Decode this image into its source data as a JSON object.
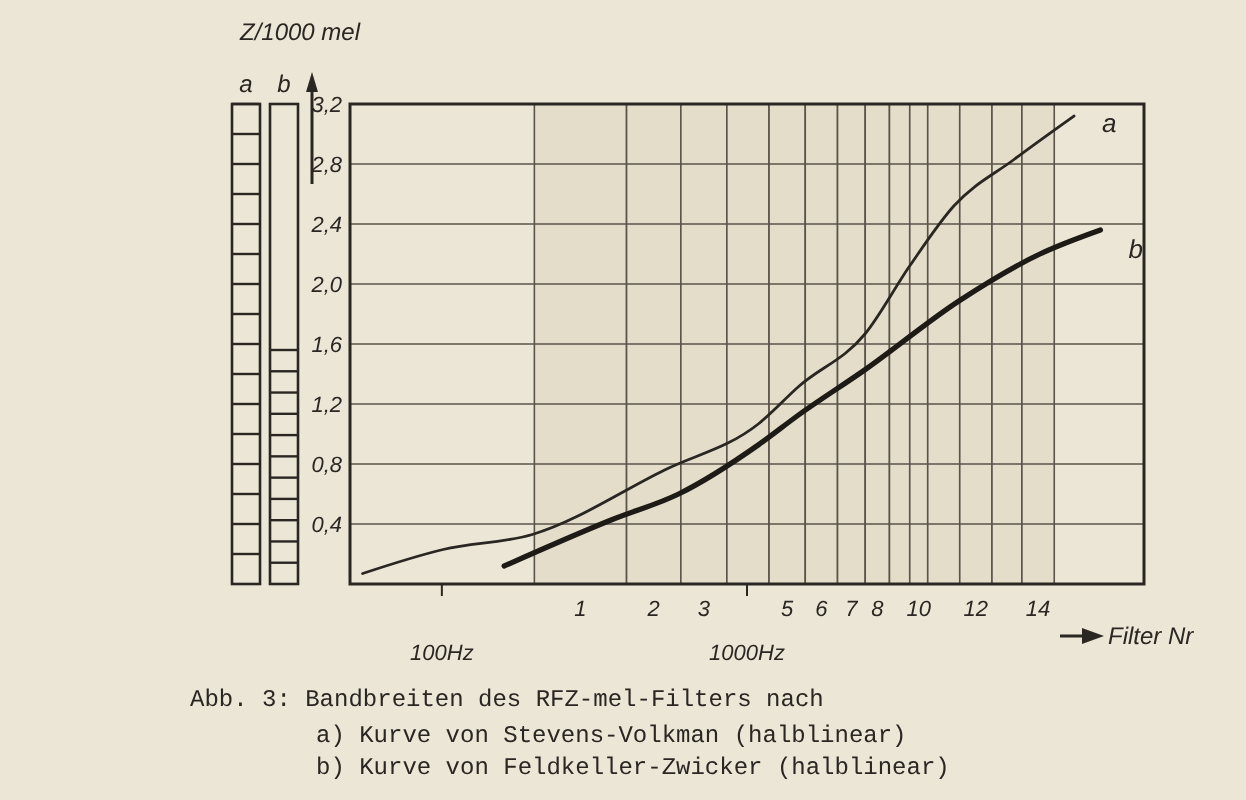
{
  "chart_data": {
    "type": "line",
    "title": "Abb. 3: Bandbreiten des RFZ-mel-Filters nach",
    "annotations": [
      "a) Kurve von Stevens-Volkman (halblinear)",
      "b) Kurve von Feldkeller-Zwicker (halblinear)"
    ],
    "bands": [
      {
        "axis": "x",
        "from": 201,
        "to": 403,
        "label": "1"
      },
      {
        "axis": "x",
        "from": 403,
        "to": 607,
        "label": "2"
      },
      {
        "axis": "x",
        "from": 607,
        "to": 859,
        "label": "3"
      },
      {
        "axis": "x",
        "from": 859,
        "to": 1181
      },
      {
        "axis": "x",
        "from": 1181,
        "to": 1552,
        "label": "5"
      },
      {
        "axis": "x",
        "from": 1552,
        "to": 1980,
        "label": "6"
      },
      {
        "axis": "x",
        "from": 1980,
        "to": 2440,
        "label": "7"
      },
      {
        "axis": "x",
        "from": 2440,
        "to": 2930,
        "label": "8"
      },
      {
        "axis": "x",
        "from": 2930,
        "to": 3415
      },
      {
        "axis": "x",
        "from": 3415,
        "to": 3911,
        "label": "10"
      },
      {
        "axis": "x",
        "from": 3911,
        "to": 4980
      },
      {
        "axis": "x",
        "from": 4980,
        "to": 6350,
        "label": "12"
      },
      {
        "axis": "x",
        "from": 6350,
        "to": 7960
      },
      {
        "axis": "x",
        "from": 7960,
        "to": 10160,
        "label": "14"
      }
    ],
    "xlabel": "Filter Nr",
    "ylabel": "Z/1000 mel",
    "log": "x",
    "xlim": [
      50,
      20000
    ],
    "xticks": [
      {
        "value": 100,
        "label": "100Hz"
      },
      {
        "value": 1000,
        "label": "1000Hz"
      }
    ],
    "ylim": [
      0,
      3.2
    ],
    "yticks": [
      {
        "value": 0.4,
        "label": "0,4"
      },
      {
        "value": 0.8,
        "label": "0,8"
      },
      {
        "value": 1.2,
        "label": "1,2"
      },
      {
        "value": 1.6,
        "label": "1,6"
      },
      {
        "value": 2.0,
        "label": "2,0"
      },
      {
        "value": 2.4,
        "label": "2,4"
      },
      {
        "value": 2.8,
        "label": "2,8"
      },
      {
        "value": 3.2,
        "label": "3,2"
      }
    ],
    "grid": "y",
    "line_style": "solid",
    "series": [
      {
        "name": "a",
        "color": "#2a2622",
        "x": [
          55,
          101,
          198,
          537,
          1094,
          1483,
          2443,
          3412,
          4762,
          7500,
          11800
        ],
        "values": [
          0.07,
          0.23,
          0.33,
          0.76,
          1.07,
          1.32,
          1.67,
          2.12,
          2.52,
          2.83,
          3.12
        ]
      },
      {
        "name": "b",
        "color": "#1e1a16",
        "x": [
          160,
          362,
          597,
          1094,
          1483,
          2443,
          4977,
          9120,
          14400
        ],
        "values": [
          0.12,
          0.43,
          0.6,
          0.93,
          1.13,
          1.43,
          1.89,
          2.2,
          2.36
        ]
      }
    ]
  }
}
